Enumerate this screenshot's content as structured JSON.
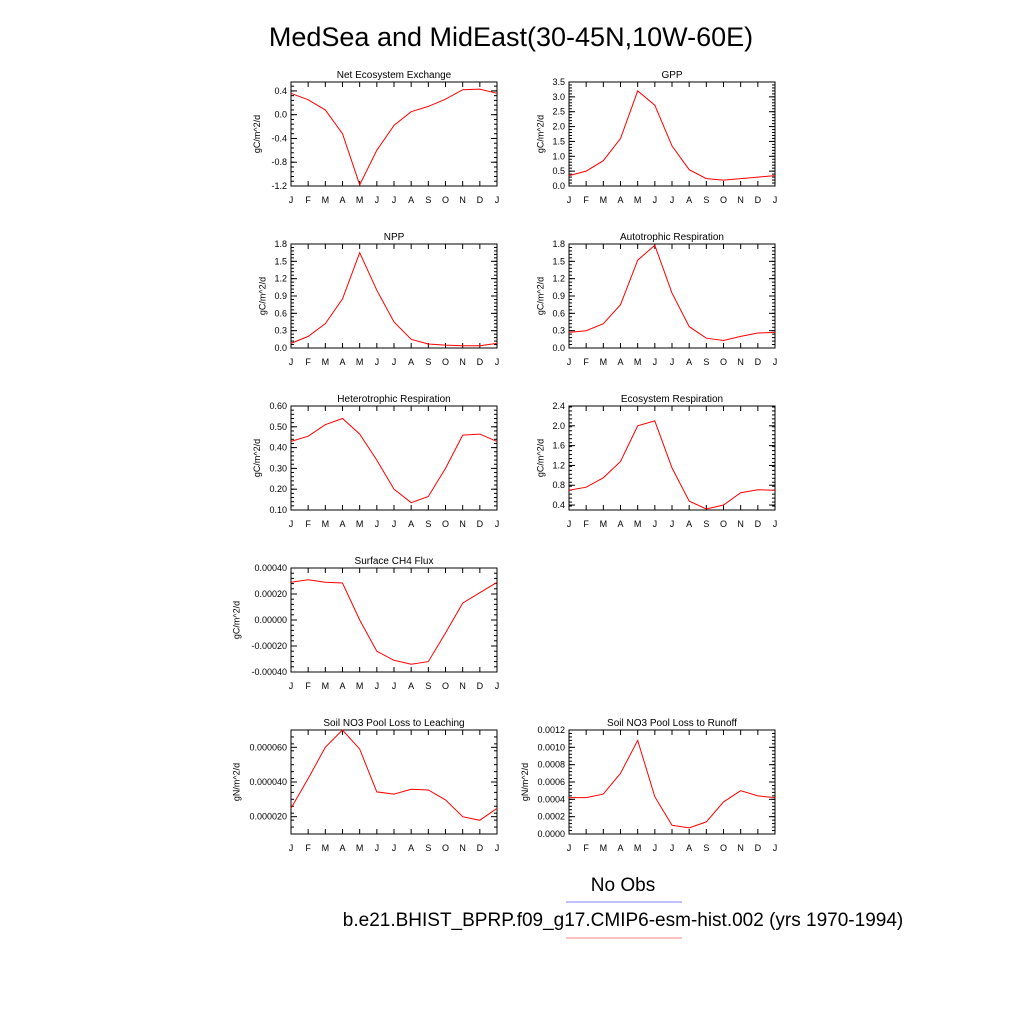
{
  "title": "MedSea and MidEast(30-45N,10W-60E)",
  "colors": {
    "model": "#ff0000",
    "obs": "#8080ff"
  },
  "legend": [
    {
      "label": "No Obs",
      "color": "#8080ff"
    },
    {
      "label": "b.e21.BHIST_BPRP.f09_g17.CMIP6-esm-hist.002 (yrs 1970-1994)",
      "color": "#ff8080"
    }
  ],
  "months": [
    "J",
    "F",
    "M",
    "A",
    "M",
    "J",
    "J",
    "A",
    "S",
    "O",
    "N",
    "D",
    "J"
  ],
  "chart_data": [
    {
      "type": "line",
      "title": "Net Ecosystem Exchange",
      "ylabel": "gC/m^2/d",
      "ylim": [
        -1.2,
        0.55
      ],
      "yticks": [
        -1.2,
        -0.8,
        -0.4,
        0.0,
        0.4
      ],
      "ytick_labels": [
        "-1.2",
        "-0.8",
        "-0.4",
        "0.0",
        "0.4"
      ],
      "values": [
        0.36,
        0.25,
        0.08,
        -0.32,
        -1.18,
        -0.6,
        -0.18,
        0.05,
        0.14,
        0.26,
        0.42,
        0.43,
        0.36
      ]
    },
    {
      "type": "line",
      "title": "GPP",
      "ylabel": "gC/m^2/d",
      "ylim": [
        0.0,
        3.5
      ],
      "yticks": [
        0.0,
        0.5,
        1.0,
        1.5,
        2.0,
        2.5,
        3.0,
        3.5
      ],
      "ytick_labels": [
        "0.0",
        "0.5",
        "1.0",
        "1.5",
        "2.0",
        "2.5",
        "3.0",
        "3.5"
      ],
      "values": [
        0.35,
        0.5,
        0.85,
        1.6,
        3.2,
        2.72,
        1.35,
        0.55,
        0.25,
        0.2,
        0.25,
        0.3,
        0.35
      ]
    },
    {
      "type": "line",
      "title": "NPP",
      "ylabel": "gC/m^2/d",
      "ylim": [
        0.0,
        1.8
      ],
      "yticks": [
        0.0,
        0.3,
        0.6,
        0.9,
        1.2,
        1.5,
        1.8
      ],
      "ytick_labels": [
        "0.0",
        "0.3",
        "0.6",
        "0.9",
        "1.2",
        "1.5",
        "1.8"
      ],
      "values": [
        0.08,
        0.2,
        0.42,
        0.85,
        1.65,
        1.0,
        0.45,
        0.15,
        0.07,
        0.05,
        0.04,
        0.04,
        0.08
      ]
    },
    {
      "type": "line",
      "title": "Autotrophic Respiration",
      "ylabel": "gC/m^2/d",
      "ylim": [
        0.0,
        1.8
      ],
      "yticks": [
        0.0,
        0.3,
        0.6,
        0.9,
        1.2,
        1.5,
        1.8
      ],
      "ytick_labels": [
        "0.0",
        "0.3",
        "0.6",
        "0.9",
        "1.2",
        "1.5",
        "1.8"
      ],
      "values": [
        0.27,
        0.3,
        0.42,
        0.75,
        1.52,
        1.78,
        0.95,
        0.37,
        0.17,
        0.13,
        0.2,
        0.26,
        0.27
      ]
    },
    {
      "type": "line",
      "title": "Heterotrophic Respiration",
      "ylabel": "gC/m^2/d",
      "ylim": [
        0.1,
        0.6
      ],
      "yticks": [
        0.1,
        0.2,
        0.3,
        0.4,
        0.5,
        0.6
      ],
      "ytick_labels": [
        "0.10",
        "0.20",
        "0.30",
        "0.40",
        "0.50",
        "0.60"
      ],
      "values": [
        0.43,
        0.455,
        0.51,
        0.54,
        0.465,
        0.34,
        0.2,
        0.135,
        0.165,
        0.3,
        0.46,
        0.465,
        0.43
      ]
    },
    {
      "type": "line",
      "title": "Ecosystem Respiration",
      "ylabel": "gC/m^2/d",
      "ylim": [
        0.3,
        2.4
      ],
      "yticks": [
        0.4,
        0.8,
        1.2,
        1.6,
        2.0,
        2.4
      ],
      "ytick_labels": [
        "0.4",
        "0.8",
        "1.2",
        "1.6",
        "2.0",
        "2.4"
      ],
      "values": [
        0.7,
        0.76,
        0.95,
        1.28,
        2.0,
        2.1,
        1.15,
        0.48,
        0.32,
        0.4,
        0.65,
        0.71,
        0.7
      ]
    },
    {
      "type": "line",
      "title": "Surface CH4 Flux",
      "ylabel": "gC/m^2/d",
      "ylim": [
        -0.0004,
        0.0004
      ],
      "yticks": [
        -0.0004,
        -0.0002,
        0.0,
        0.0002,
        0.0004
      ],
      "ytick_labels": [
        "-0.00040",
        "-0.00020",
        "0.00000",
        "0.00020",
        "0.00040"
      ],
      "values": [
        0.00029,
        0.00031,
        0.00029,
        0.000285,
        0.0,
        -0.00024,
        -0.00031,
        -0.00034,
        -0.00032,
        -0.0001,
        0.00013,
        0.00021,
        0.00029
      ]
    },
    {
      "type": "line",
      "title": "Soil NO3 Pool Loss to Leaching",
      "ylabel": "gN/m^2/d",
      "ylim": [
        1e-05,
        7e-05
      ],
      "yticks": [
        2e-05,
        4e-05,
        6e-05
      ],
      "ytick_labels": [
        "0.000020",
        "0.000040",
        "0.000060"
      ],
      "values": [
        2.48e-05,
        4.2e-05,
        6e-05,
        7e-05,
        5.9e-05,
        3.43e-05,
        3.3e-05,
        3.58e-05,
        3.54e-05,
        2.97e-05,
        2e-05,
        1.79e-05,
        2.48e-05
      ]
    },
    {
      "type": "line",
      "title": "Soil NO3 Pool Loss to Runoff",
      "ylabel": "gN/m^2/d",
      "ylim": [
        0.0,
        0.0012
      ],
      "yticks": [
        0.0,
        0.0002,
        0.0004,
        0.0006,
        0.0008,
        0.001,
        0.0012
      ],
      "ytick_labels": [
        "0.0000",
        "0.0002",
        "0.0004",
        "0.0006",
        "0.0008",
        "0.0010",
        "0.0012"
      ],
      "values": [
        0.00042,
        0.00042,
        0.00046,
        0.0007,
        0.00108,
        0.00043,
        0.0001,
        7e-05,
        0.00014,
        0.00037,
        0.0005,
        0.00044,
        0.00042
      ]
    }
  ]
}
